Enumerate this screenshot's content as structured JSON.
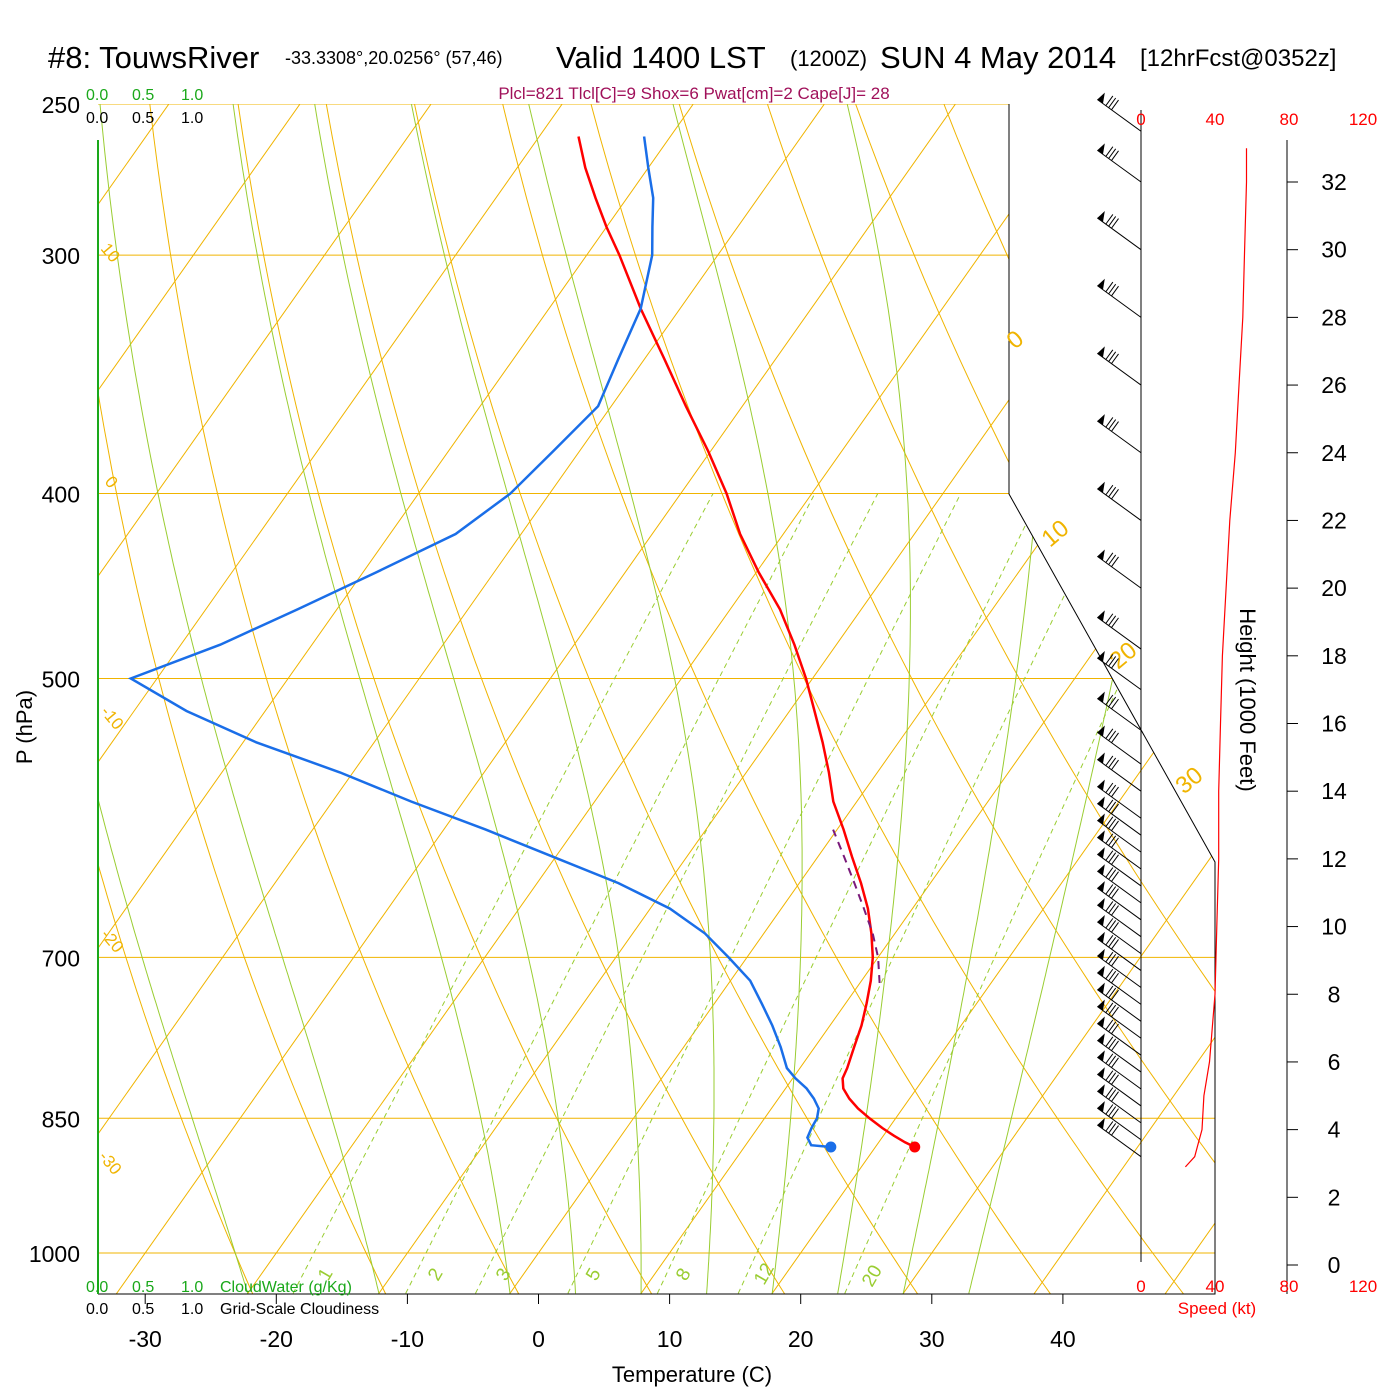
{
  "header": {
    "station": "#8: TouwsRiver",
    "coords": "-33.3308°,20.0256° (57,46)",
    "valid": "Valid 1400 LST",
    "utc": "(1200Z)",
    "date": "SUN 4 May 2014",
    "forecast": "[12hrFcst@0352z]",
    "params": "Plcl=821 Tlcl[C]=9 Shox=6 Pwat[cm]=2 Cape[J]= 28"
  },
  "colors": {
    "temperature": "#ff0000",
    "dewpoint": "#1a6ee8",
    "parcel": "#7a1a7a",
    "isotherm": "#f0b400",
    "moist_adiabat": "#9acd32",
    "cloud_axis": "#1aa81a",
    "speed": "#ff0000"
  },
  "chart_data": {
    "type": "line",
    "subtype": "skew-t log-p sounding",
    "xlabel": "Temperature (C)",
    "ylabel": "P (hPa)",
    "y2label": "Height (1000 Feet)",
    "speed_label": "Speed (kt)",
    "xlim": [
      -34,
      36
    ],
    "ylim": [
      250,
      1000
    ],
    "y_scale": "log",
    "x_ticks": [
      -30,
      -20,
      -10,
      0,
      10,
      20,
      30,
      40
    ],
    "pressure_ticks": [
      250,
      300,
      400,
      500,
      700,
      850,
      1000
    ],
    "height_ticks": [
      0,
      2,
      4,
      6,
      8,
      10,
      12,
      14,
      16,
      18,
      20,
      22,
      24,
      26,
      28,
      30,
      32
    ],
    "speed_ticks": [
      0,
      40,
      80,
      120
    ],
    "cloud_ticks_top_green": [
      "0.0",
      "0.5",
      "1.0"
    ],
    "cloud_ticks_top_black": [
      "0.0",
      "0.5",
      "1.0"
    ],
    "cloud_ticks_bottom_green": [
      "0.0",
      "0.5",
      "1.0"
    ],
    "cloud_ticks_bottom_black": [
      "0.0",
      "0.5",
      "1.0"
    ],
    "cloud_water_label": "CloudWater (g/Kg)",
    "cloudiness_label": "Grid-Scale Cloudiness",
    "isotherm_labels": [
      "10",
      "0",
      "-10",
      "-20",
      "-30",
      "0",
      "10",
      "20",
      "30"
    ],
    "mixing_ratio_labels": [
      "1",
      "2",
      "3",
      "5",
      "8",
      "12",
      "20"
    ],
    "series": [
      {
        "name": "Temperature",
        "p": [
          880,
          875,
          868,
          860,
          850,
          840,
          830,
          820,
          810,
          800,
          780,
          760,
          740,
          720,
          700,
          680,
          660,
          640,
          620,
          600,
          580,
          560,
          540,
          520,
          500,
          480,
          460,
          440,
          420,
          400,
          380,
          360,
          340,
          320,
          300,
          290,
          280,
          270,
          260
        ],
        "t": [
          23.0,
          22.0,
          20.8,
          19.5,
          18.0,
          16.6,
          15.4,
          14.4,
          13.8,
          13.6,
          13.0,
          12.4,
          11.6,
          10.7,
          9.6,
          8.2,
          6.6,
          4.7,
          2.6,
          0.5,
          -1.8,
          -3.7,
          -5.8,
          -8.1,
          -10.5,
          -13.2,
          -16.2,
          -19.8,
          -23.3,
          -26.5,
          -30.2,
          -34.3,
          -38.5,
          -43.0,
          -47.5,
          -50.0,
          -52.4,
          -54.8,
          -57.0
        ]
      },
      {
        "name": "Dewpoint",
        "p": [
          880,
          878,
          870,
          860,
          850,
          840,
          830,
          820,
          810,
          800,
          780,
          760,
          740,
          720,
          700,
          680,
          660,
          640,
          620,
          600,
          580,
          560,
          540,
          520,
          500,
          480,
          460,
          440,
          420,
          400,
          380,
          360,
          340,
          320,
          300,
          290,
          280,
          270,
          260
        ],
        "t": [
          16.6,
          15.0,
          14.3,
          14.1,
          14.0,
          13.6,
          12.7,
          11.6,
          10.2,
          9.0,
          7.4,
          5.6,
          3.6,
          1.5,
          -1.4,
          -4.5,
          -8.5,
          -13.8,
          -20.2,
          -26.8,
          -34.0,
          -41.0,
          -49.0,
          -56.0,
          -62.0,
          -57.0,
          -53.0,
          -49.0,
          -45.0,
          -43.0,
          -42.0,
          -41.0,
          -42.0,
          -43.0,
          -45.0,
          -46.5,
          -48.0,
          -50.0,
          -52.0
        ]
      },
      {
        "name": "Parcel",
        "p": [
          722,
          700,
          680,
          660,
          640,
          620,
          600
        ],
        "t": [
          11.5,
          10.0,
          8.3,
          6.3,
          4.2,
          2.0,
          -0.3
        ]
      }
    ],
    "surface_points": [
      {
        "series": "Temperature",
        "p": 880,
        "t": 23.0
      },
      {
        "series": "Dewpoint",
        "p": 880,
        "t": 16.6
      }
    ],
    "wind_speed_profile": {
      "height_kft": [
        2.9,
        3.2,
        3.6,
        4.0,
        5.0,
        6.0,
        8.0,
        10.0,
        12.0,
        14.0,
        16.0,
        18.0,
        20.0,
        22.0,
        24.0,
        26.0,
        28.0,
        30.0,
        32.0,
        33.0
      ],
      "speed_kt": [
        24,
        29,
        31,
        33,
        34,
        37,
        40,
        41,
        42,
        42,
        43,
        44,
        46,
        48,
        51,
        53,
        55,
        56,
        57,
        57
      ]
    },
    "wind_barb_heights_kft": [
      3.2,
      3.7,
      4.2,
      4.7,
      5.2,
      5.7,
      6.2,
      6.7,
      7.2,
      7.7,
      8.2,
      8.7,
      9.2,
      9.7,
      10.2,
      10.7,
      11.2,
      11.7,
      12.2,
      12.7,
      13.2,
      14.0,
      14.8,
      15.8,
      17.0,
      18.2,
      20.0,
      22.0,
      24.0,
      26.0,
      28.0,
      30.0,
      32.0,
      33.5
    ]
  }
}
